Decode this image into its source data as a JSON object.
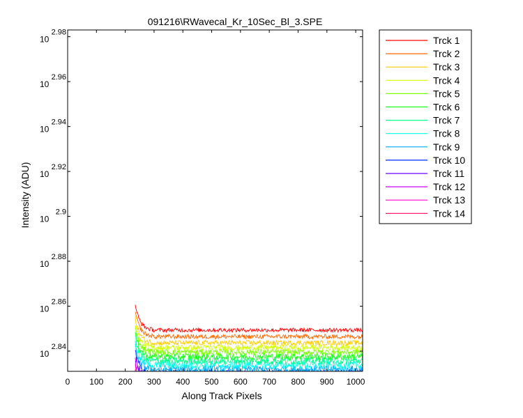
{
  "chart_data": {
    "type": "line",
    "title": "091216\\RWavecal_Kr_10Sec_Bl_3.SPE",
    "xlabel": "Along Track Pixels",
    "ylabel": "Intensity (ADU)",
    "y_scale": "log10",
    "xlim": [
      0,
      1024
    ],
    "ylim_exponent": [
      2.831,
      2.983
    ],
    "x_ticks": [
      0,
      100,
      200,
      300,
      400,
      500,
      600,
      700,
      800,
      900,
      1000
    ],
    "y_tick_base": "10",
    "y_tick_exponents": [
      "2.84",
      "2.86",
      "2.88",
      "2.9",
      "2.92",
      "2.94",
      "2.96",
      "2.98"
    ],
    "legend_position": "outside-right",
    "grid": false,
    "series": [
      {
        "name": "Trck 1",
        "color": "#ff0000",
        "plateau_exponent": 2.8627
      },
      {
        "name": "Trck 2",
        "color": "#ff6a00",
        "plateau_exponent": 2.8598
      },
      {
        "name": "Trck 3",
        "color": "#ffcc00",
        "plateau_exponent": 2.857
      },
      {
        "name": "Trck 4",
        "color": "#d4ff00",
        "plateau_exponent": 2.8549
      },
      {
        "name": "Trck 5",
        "color": "#7dff00",
        "plateau_exponent": 2.8529
      },
      {
        "name": "Trck 6",
        "color": "#1aff1a",
        "plateau_exponent": 2.8509
      },
      {
        "name": "Trck 7",
        "color": "#00ff8c",
        "plateau_exponent": 2.849
      },
      {
        "name": "Trck 8",
        "color": "#00ffe6",
        "plateau_exponent": 2.8471
      },
      {
        "name": "Trck 9",
        "color": "#00a8ff",
        "plateau_exponent": 2.8452
      },
      {
        "name": "Trck 10",
        "color": "#0026ff",
        "plateau_exponent": 2.8432
      },
      {
        "name": "Trck 11",
        "color": "#6a00ff",
        "plateau_exponent": 2.8414
      },
      {
        "name": "Trck 12",
        "color": "#cc00ff",
        "plateau_exponent": 2.8395
      },
      {
        "name": "Trck 13",
        "color": "#ff00c8",
        "plateau_exponent": 2.8376
      },
      {
        "name": "Trck 14",
        "color": "#ff0066",
        "plateau_exponent": 2.8357
      }
    ]
  }
}
